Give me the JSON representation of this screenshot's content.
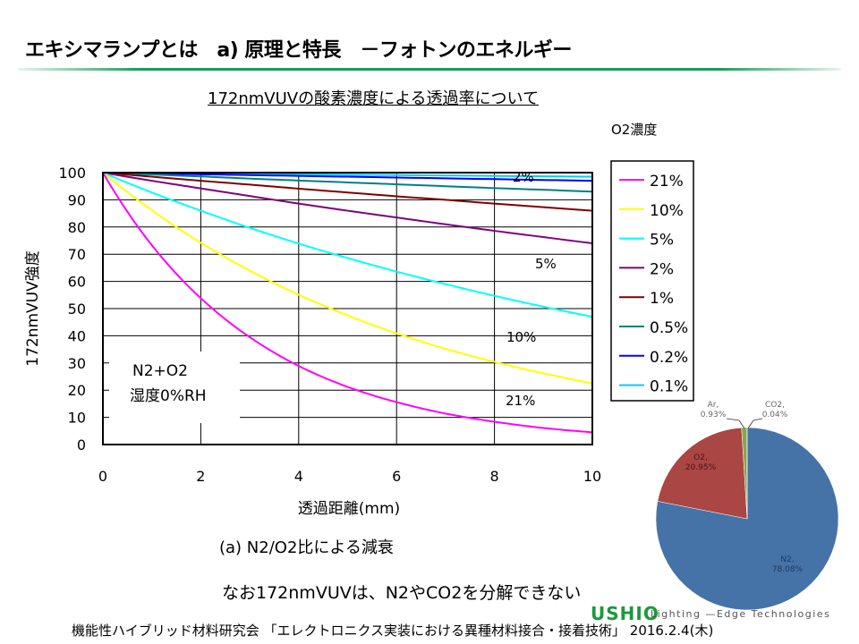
{
  "slide": {
    "title": "エキシマランプとは　a) 原理と特長　－フォトンのエネルギー",
    "subtitle": "172nmVUVの酸素濃度による透過率について",
    "caption": "(a)  N2/O2比による減衰",
    "note": "なお172nmVUVは、N2やCO2を分解できない",
    "footer": "機能性ハイブリッド材料研究会 「エレクトロニクス実装における異種材料接合・接着技術」 2016.2.4(木)",
    "logo": "USHIO",
    "tagline": "Lighting —Edge Technologies",
    "accent_color": "#1a9a5a"
  },
  "chart_data": [
    {
      "type": "line",
      "xlabel": "透過距離(mm)",
      "ylabel": "172nmVUV強度",
      "xlim": [
        0,
        10
      ],
      "ylim": [
        0,
        100
      ],
      "xticks": [
        0,
        2,
        4,
        6,
        8,
        10
      ],
      "yticks": [
        0,
        10,
        20,
        30,
        40,
        50,
        60,
        70,
        80,
        90,
        100
      ],
      "grid": true,
      "legend_title": "O2濃度",
      "legend_position": "right",
      "annotation": [
        "N2+O2",
        "湿度0%RH"
      ],
      "curve_labels": [
        {
          "text": "2%"
        },
        {
          "text": "5%"
        },
        {
          "text": "10%"
        },
        {
          "text": "21%"
        }
      ],
      "x": [
        0,
        1,
        2,
        3,
        4,
        5,
        6,
        7,
        8,
        9,
        10
      ],
      "series": [
        {
          "name": "21%",
          "color": "#ff00ff",
          "values": [
            100,
            73.3,
            53.8,
            39.5,
            28.9,
            21.2,
            15.6,
            11.4,
            8.4,
            6.1,
            4.5
          ]
        },
        {
          "name": "10%",
          "color": "#ffff00",
          "values": [
            100,
            86.2,
            74.2,
            64.0,
            55.1,
            47.5,
            40.9,
            35.2,
            30.4,
            26.2,
            22.5
          ]
        },
        {
          "name": "5%",
          "color": "#00ffff",
          "values": [
            100,
            92.7,
            86.0,
            79.7,
            73.9,
            68.6,
            63.6,
            59.0,
            54.7,
            50.7,
            47.0
          ]
        },
        {
          "name": "2%",
          "color": "#800080",
          "values": [
            100,
            97.0,
            94.2,
            91.4,
            88.6,
            86.0,
            83.5,
            81.0,
            78.6,
            76.3,
            74.0
          ]
        },
        {
          "name": "1%",
          "color": "#800000",
          "values": [
            100,
            98.5,
            97.0,
            95.6,
            94.1,
            92.7,
            91.3,
            90.0,
            88.6,
            87.3,
            86.0
          ]
        },
        {
          "name": "0.5%",
          "color": "#008080",
          "values": [
            100,
            99.3,
            98.6,
            97.8,
            97.1,
            96.4,
            95.7,
            95.0,
            94.3,
            93.7,
            93.0
          ]
        },
        {
          "name": "0.2%",
          "color": "#0000ff",
          "values": [
            100,
            99.7,
            99.4,
            99.1,
            98.8,
            98.5,
            98.2,
            97.9,
            97.6,
            97.3,
            97.0
          ]
        },
        {
          "name": "0.1%",
          "color": "#00ccff",
          "values": [
            100,
            99.85,
            99.7,
            99.55,
            99.4,
            99.25,
            99.1,
            98.95,
            98.8,
            98.65,
            98.5
          ]
        }
      ]
    },
    {
      "type": "pie",
      "slices": [
        {
          "name": "N2",
          "value": 78.08,
          "label": "N2,",
          "pct": "78.08%",
          "color": "#4572a7"
        },
        {
          "name": "O2",
          "value": 20.95,
          "label": "O2,",
          "pct": "20.95%",
          "color": "#aa4643"
        },
        {
          "name": "Ar",
          "value": 0.93,
          "label": "Ar,",
          "pct": "0.93%",
          "color": "#89a54e"
        },
        {
          "name": "CO2",
          "value": 0.04,
          "label": "CO2,",
          "pct": "0.04%",
          "color": "#71588f"
        }
      ]
    }
  ]
}
